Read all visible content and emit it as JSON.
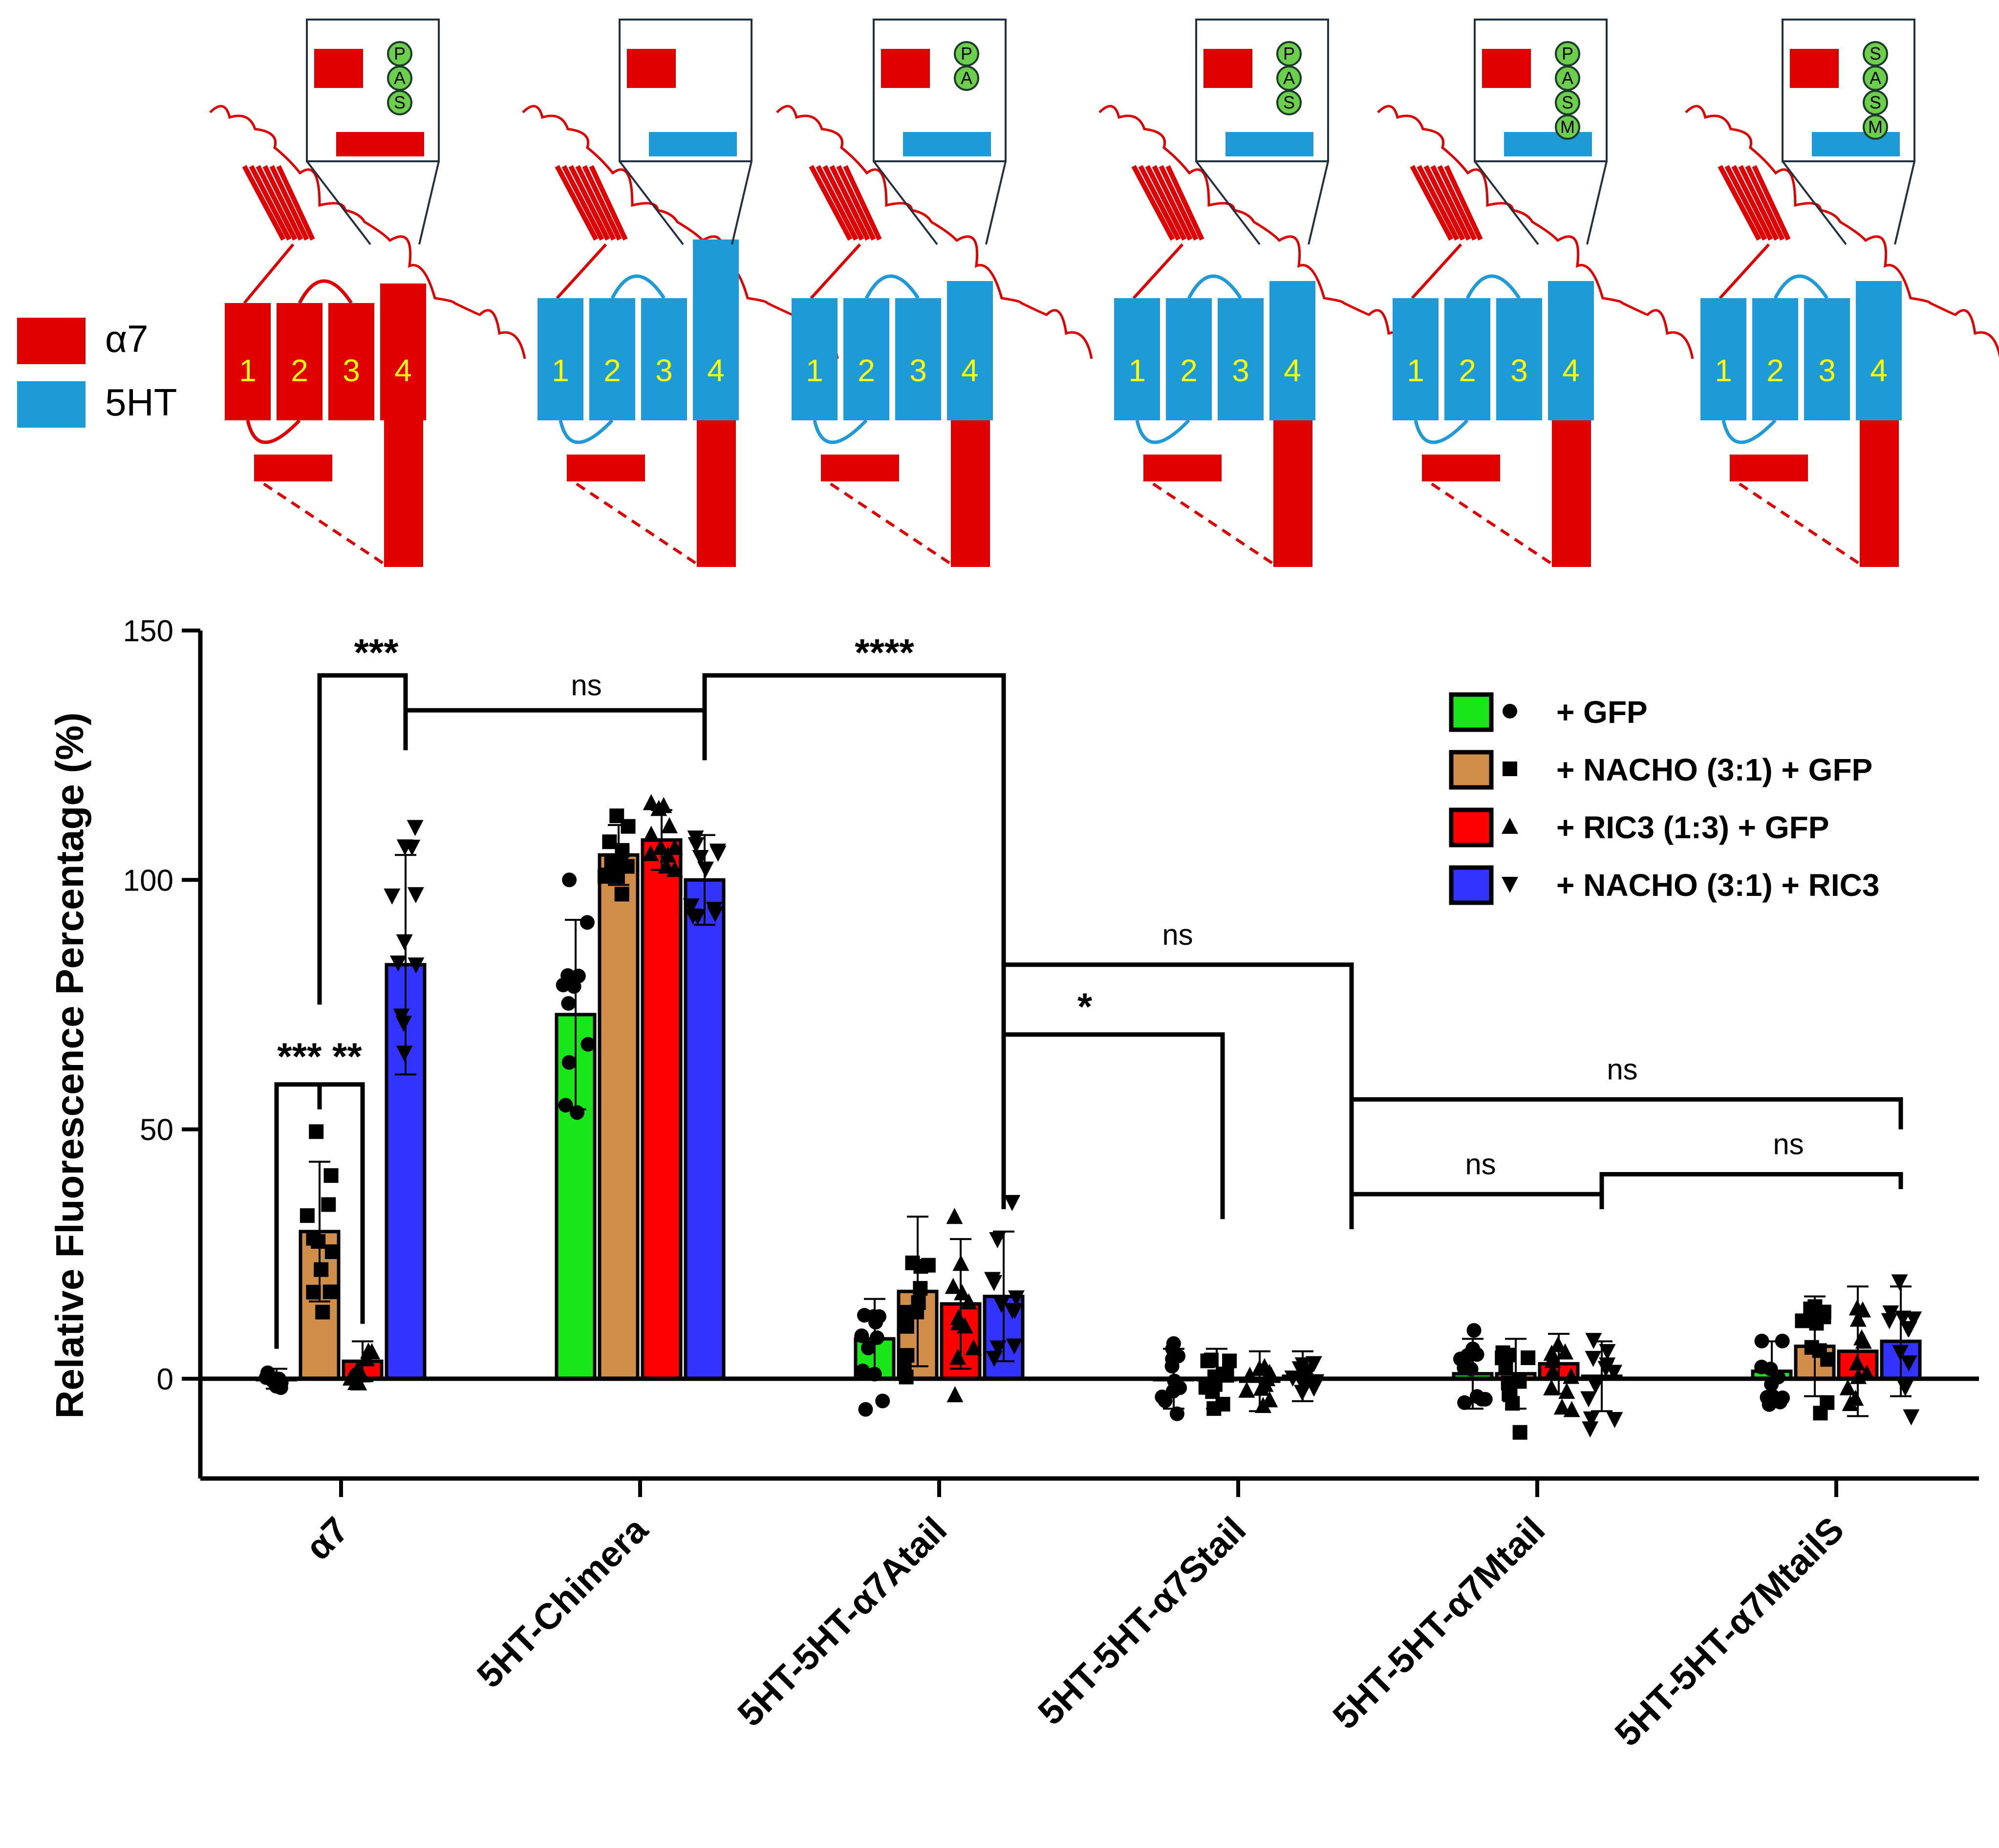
{
  "schematic": {
    "legend": [
      {
        "label": "α7",
        "color": "#e00000"
      },
      {
        "label": "5HT",
        "color": "#1e9bd7"
      }
    ],
    "constructs": [
      {
        "helices": [
          "α7",
          "α7",
          "α7",
          "α7"
        ],
        "tail": "α7",
        "tail_letters": [
          "P",
          "A",
          "S"
        ]
      },
      {
        "helices": [
          "5HT",
          "5HT",
          "5HT",
          "5HT"
        ],
        "tail": "α7",
        "tail_letters": []
      },
      {
        "helices": [
          "5HT",
          "5HT",
          "5HT",
          "5HT"
        ],
        "tail": "α7",
        "tail_letters": [
          "P",
          "A"
        ]
      },
      {
        "helices": [
          "5HT",
          "5HT",
          "5HT",
          "5HT"
        ],
        "tail": "α7",
        "tail_letters": [
          "P",
          "A",
          "S"
        ]
      },
      {
        "helices": [
          "5HT",
          "5HT",
          "5HT",
          "5HT"
        ],
        "tail": "α7",
        "tail_letters": [
          "P",
          "A",
          "S",
          "M"
        ]
      },
      {
        "helices": [
          "5HT",
          "5HT",
          "5HT",
          "5HT"
        ],
        "tail": "α7",
        "tail_letters": [
          "S",
          "A",
          "S",
          "M"
        ]
      }
    ],
    "helix_numbers": [
      "1",
      "2",
      "3",
      "4"
    ]
  },
  "chart_data": {
    "type": "bar",
    "ylabel": "Relative Fluorescence Percentage (%)",
    "xlabel": "",
    "ylim": [
      -20,
      150
    ],
    "yticks": [
      0,
      50,
      100,
      150
    ],
    "categories": [
      "α7",
      "5HT-Chimera",
      "5HT-5HT-α7Atail",
      "5HT-5HT-α7Stail",
      "5HT-5HT-α7Mtail",
      "5HT-5HT-α7MtailS"
    ],
    "series": [
      {
        "name": "+ GFP",
        "marker": "circle",
        "color": "#19e619",
        "values": [
          0,
          73,
          8,
          0,
          1,
          1.5
        ],
        "errors": [
          2,
          19,
          8,
          6,
          7,
          6
        ]
      },
      {
        "name": "+ NACHO (3:1) + GFP",
        "marker": "square",
        "color": "#d08e4a",
        "values": [
          29.5,
          105,
          17.5,
          0,
          1,
          6.5
        ],
        "errors": [
          14,
          6,
          15,
          6,
          7,
          10
        ]
      },
      {
        "name": "+ RIC3 (1:3) + GFP",
        "marker": "triangle-up",
        "color": "#ff0000",
        "values": [
          3.5,
          108,
          15,
          -0.5,
          3,
          5.5
        ],
        "errors": [
          4,
          6,
          13,
          6,
          6,
          13
        ]
      },
      {
        "name": "+ NACHO (3:1) + RIC3",
        "marker": "triangle-down",
        "color": "#3333ff",
        "values": [
          83,
          100,
          16.5,
          0.5,
          0.5,
          7.5
        ],
        "errors": [
          22,
          9,
          13,
          5,
          7,
          11
        ]
      }
    ],
    "significance": [
      {
        "label": "*** **",
        "bracket": "α7 GFP – α7 RIC3 (with NACHO mid tick)"
      },
      {
        "label": "***",
        "bracket": "α7 NACHO – α7 NACHO+RIC3"
      },
      {
        "label": "ns",
        "bracket": "α7 NACHO+RIC3 – 5HT-Chimera NACHO+RIC3"
      },
      {
        "label": "****",
        "bracket": "5HT-Chimera NACHO+RIC3 – 5HT-5HT-α7Atail NACHO+RIC3"
      },
      {
        "label": "*",
        "bracket": "5HT-5HT-α7Atail NACHO+RIC3 – 5HT-5HT-α7Stail GFP"
      },
      {
        "label": "ns",
        "bracket": "5HT-5HT-α7Atail NACHO+RIC3 – 5HT-5HT-α7Stail NACHO+RIC3"
      },
      {
        "label": "ns",
        "bracket": "5HT-5HT-α7Stail – 5HT-5HT-α7MtailS NACHO+RIC3"
      },
      {
        "label": "ns",
        "bracket": "5HT-5HT-α7Stail – 5HT-5HT-α7Mtail NACHO+RIC3"
      },
      {
        "label": "ns",
        "bracket": "5HT-5HT-α7Mtail NACHO+RIC3 – 5HT-5HT-α7MtailS NACHO+RIC3"
      }
    ]
  }
}
